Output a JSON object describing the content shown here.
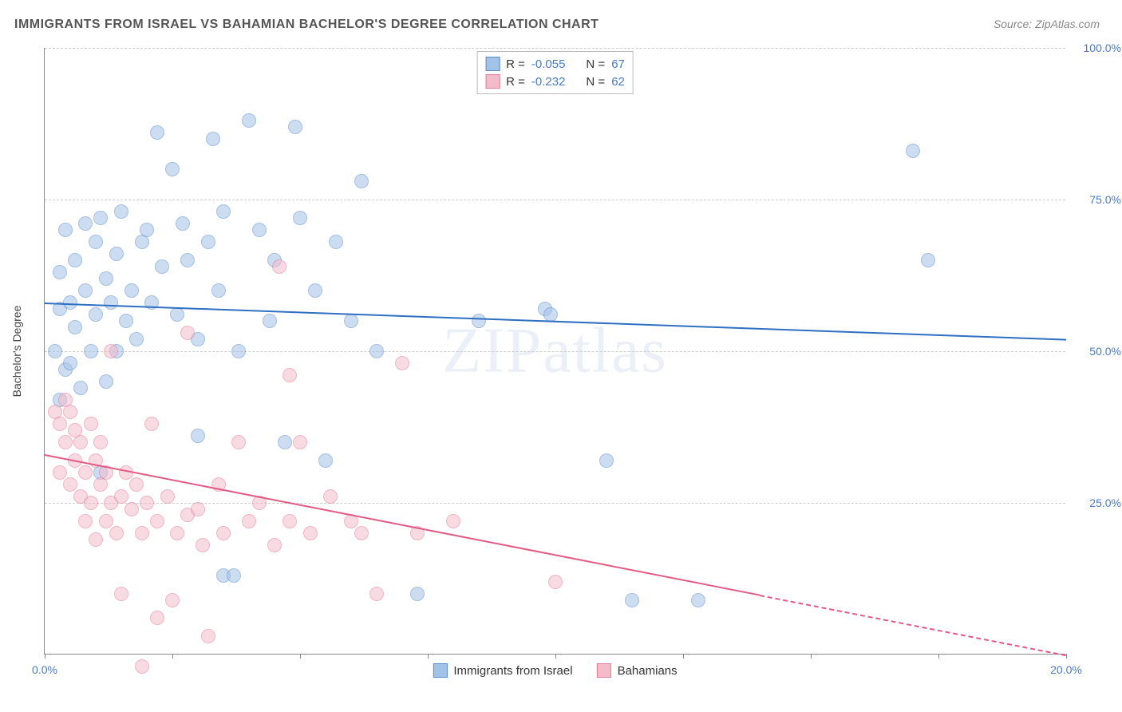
{
  "title": "IMMIGRANTS FROM ISRAEL VS BAHAMIAN BACHELOR'S DEGREE CORRELATION CHART",
  "source": "Source: ZipAtlas.com",
  "watermark": "ZIPatlas",
  "y_axis_label": "Bachelor's Degree",
  "chart": {
    "type": "scatter",
    "xlim": [
      0,
      20
    ],
    "ylim": [
      0,
      100
    ],
    "x_ticks": [
      0,
      2.5,
      5,
      7.5,
      10,
      12.5,
      15,
      17.5,
      20
    ],
    "x_tick_labels": {
      "0": "0.0%",
      "20": "20.0%"
    },
    "y_ticks": [
      25,
      50,
      75,
      100
    ],
    "y_tick_labels": {
      "25": "25.0%",
      "50": "50.0%",
      "75": "75.0%",
      "100": "100.0%"
    },
    "grid_color": "#cccccc",
    "background_color": "#ffffff",
    "marker_radius": 9,
    "marker_opacity": 0.55,
    "axis_label_color": "#4a7bc4",
    "text_color": "#444444"
  },
  "series": [
    {
      "name": "Immigrants from Israel",
      "fill": "#a3c2e8",
      "stroke": "#5a8bc9",
      "line_color": "#2e6fc2",
      "R": "-0.055",
      "N": "67",
      "trend": {
        "x1": 0,
        "y1": 58,
        "x2": 20,
        "y2": 52,
        "solid_to_x": 20
      },
      "points": [
        [
          0.2,
          50
        ],
        [
          0.3,
          63
        ],
        [
          0.3,
          42
        ],
        [
          0.3,
          57
        ],
        [
          0.4,
          70
        ],
        [
          0.4,
          47
        ],
        [
          0.5,
          48
        ],
        [
          0.5,
          58
        ],
        [
          0.6,
          65
        ],
        [
          0.6,
          54
        ],
        [
          0.7,
          44
        ],
        [
          0.8,
          71
        ],
        [
          0.8,
          60
        ],
        [
          0.9,
          50
        ],
        [
          1.0,
          68
        ],
        [
          1.0,
          56
        ],
        [
          1.1,
          30
        ],
        [
          1.1,
          72
        ],
        [
          1.2,
          62
        ],
        [
          1.2,
          45
        ],
        [
          1.3,
          58
        ],
        [
          1.4,
          66
        ],
        [
          1.4,
          50
        ],
        [
          1.5,
          73
        ],
        [
          1.6,
          55
        ],
        [
          1.7,
          60
        ],
        [
          1.8,
          52
        ],
        [
          1.9,
          68
        ],
        [
          2.0,
          70
        ],
        [
          2.1,
          58
        ],
        [
          2.2,
          86
        ],
        [
          2.3,
          64
        ],
        [
          2.5,
          80
        ],
        [
          2.6,
          56
        ],
        [
          2.7,
          71
        ],
        [
          2.8,
          65
        ],
        [
          3.0,
          36
        ],
        [
          3.0,
          52
        ],
        [
          3.2,
          68
        ],
        [
          3.3,
          85
        ],
        [
          3.4,
          60
        ],
        [
          3.5,
          13
        ],
        [
          3.5,
          73
        ],
        [
          3.7,
          13
        ],
        [
          3.8,
          50
        ],
        [
          4.0,
          88
        ],
        [
          4.2,
          70
        ],
        [
          4.4,
          55
        ],
        [
          4.5,
          65
        ],
        [
          4.7,
          35
        ],
        [
          4.9,
          87
        ],
        [
          5.0,
          72
        ],
        [
          5.3,
          60
        ],
        [
          5.5,
          32
        ],
        [
          5.7,
          68
        ],
        [
          6.0,
          55
        ],
        [
          6.2,
          78
        ],
        [
          6.5,
          50
        ],
        [
          7.3,
          10
        ],
        [
          8.5,
          55
        ],
        [
          9.8,
          57
        ],
        [
          9.9,
          56
        ],
        [
          11.0,
          32
        ],
        [
          11.5,
          9
        ],
        [
          12.8,
          9
        ],
        [
          17.0,
          83
        ],
        [
          17.3,
          65
        ]
      ]
    },
    {
      "name": "Bahamians",
      "fill": "#f4bccb",
      "stroke": "#e47a9a",
      "line_color": "#e35a85",
      "R": "-0.232",
      "N": "62",
      "trend": {
        "x1": 0,
        "y1": 33,
        "x2": 20,
        "y2": 0,
        "solid_to_x": 14
      },
      "points": [
        [
          0.2,
          40
        ],
        [
          0.3,
          38
        ],
        [
          0.3,
          30
        ],
        [
          0.4,
          42
        ],
        [
          0.4,
          35
        ],
        [
          0.5,
          28
        ],
        [
          0.5,
          40
        ],
        [
          0.6,
          32
        ],
        [
          0.6,
          37
        ],
        [
          0.7,
          26
        ],
        [
          0.7,
          35
        ],
        [
          0.8,
          30
        ],
        [
          0.8,
          22
        ],
        [
          0.9,
          38
        ],
        [
          0.9,
          25
        ],
        [
          1.0,
          32
        ],
        [
          1.0,
          19
        ],
        [
          1.1,
          28
        ],
        [
          1.1,
          35
        ],
        [
          1.2,
          22
        ],
        [
          1.2,
          30
        ],
        [
          1.3,
          25
        ],
        [
          1.3,
          50
        ],
        [
          1.4,
          20
        ],
        [
          1.5,
          26
        ],
        [
          1.5,
          10
        ],
        [
          1.6,
          30
        ],
        [
          1.7,
          24
        ],
        [
          1.8,
          28
        ],
        [
          1.9,
          -2
        ],
        [
          1.9,
          20
        ],
        [
          2.0,
          25
        ],
        [
          2.1,
          38
        ],
        [
          2.2,
          6
        ],
        [
          2.2,
          22
        ],
        [
          2.4,
          26
        ],
        [
          2.5,
          9
        ],
        [
          2.6,
          20
        ],
        [
          2.8,
          23
        ],
        [
          2.8,
          53
        ],
        [
          3.0,
          24
        ],
        [
          3.1,
          18
        ],
        [
          3.2,
          3
        ],
        [
          3.4,
          28
        ],
        [
          3.5,
          20
        ],
        [
          3.8,
          35
        ],
        [
          4.0,
          22
        ],
        [
          4.2,
          25
        ],
        [
          4.5,
          18
        ],
        [
          4.6,
          64
        ],
        [
          4.8,
          46
        ],
        [
          4.8,
          22
        ],
        [
          5.0,
          35
        ],
        [
          5.2,
          20
        ],
        [
          5.6,
          26
        ],
        [
          6.0,
          22
        ],
        [
          6.2,
          20
        ],
        [
          6.5,
          10
        ],
        [
          7.0,
          48
        ],
        [
          7.3,
          20
        ],
        [
          8.0,
          22
        ],
        [
          10.0,
          12
        ]
      ]
    }
  ],
  "legend_top": {
    "row1": {
      "R_label": "R =",
      "N_label": "N ="
    },
    "row2": {
      "R_label": "R =",
      "N_label": "N ="
    }
  },
  "legend_bottom": {
    "item1": "Immigrants from Israel",
    "item2": "Bahamians"
  }
}
